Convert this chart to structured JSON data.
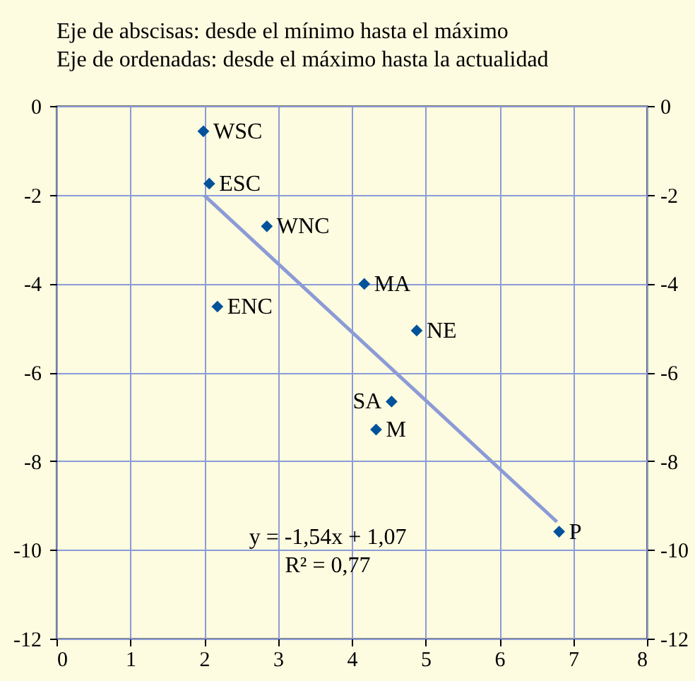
{
  "chart_data": {
    "type": "scatter",
    "title": "Eje de abscisas: desde el mínimo hasta el máximo",
    "subtitle": "Eje de ordenadas: desde el máximo hasta la actualidad",
    "series": [
      {
        "type": "scatter",
        "color": "#00529b",
        "marker": "diamond",
        "x": [
          1.99,
          2.07,
          2.85,
          4.17,
          2.18,
          4.88,
          4.54,
          4.33,
          6.81
        ],
        "values": [
          -0.57,
          -1.75,
          -2.71,
          -4.01,
          -4.52,
          -5.06,
          -6.66,
          -7.29,
          -9.59
        ],
        "value_labels": [
          "WSC",
          "ESC",
          "WNC",
          "MA",
          "ENC",
          "NE",
          "SA",
          "M",
          "P"
        ]
      },
      {
        "type": "line",
        "color": "#8c9bd6",
        "x": [
          2.0,
          6.78
        ],
        "values": [
          -2.01,
          -9.37
        ]
      }
    ],
    "xlim": [
      0,
      8
    ],
    "xticks": [
      0,
      1,
      2,
      3,
      4,
      5,
      6,
      7,
      8
    ],
    "ylim": [
      -12,
      0
    ],
    "yticks": [
      -12,
      -10,
      -8,
      -6,
      -4,
      -2,
      0
    ],
    "y2lim": [
      -12,
      0
    ],
    "y2ticks": [
      -12,
      -10,
      -8,
      -6,
      -4,
      -2,
      0
    ],
    "grid": true,
    "annotations": [
      "y = -1,54x + 1,07",
      "R² = 0,77"
    ]
  }
}
